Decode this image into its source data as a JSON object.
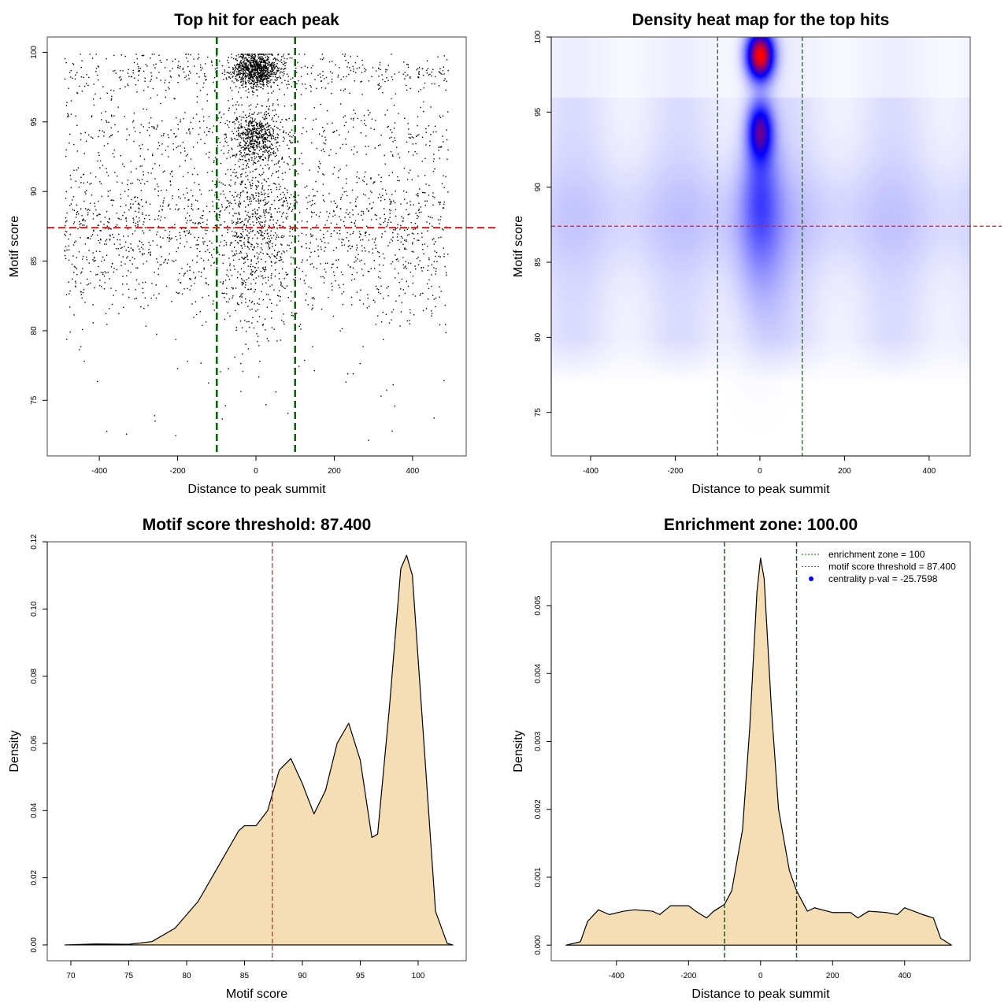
{
  "chart_data": [
    {
      "type": "scatter",
      "title": "Top hit for each peak",
      "xlabel": "Distance to peak summit",
      "ylabel": "Motif score",
      "xlim": [
        -533,
        537
      ],
      "ylim": [
        71.0,
        101.1
      ],
      "xticks": [
        -400,
        -200,
        0,
        200,
        400
      ],
      "yticks": [
        75,
        80,
        85,
        90,
        95,
        100
      ],
      "vlines": [
        -100,
        100
      ],
      "vline_color": "#006400",
      "hline": 87.4,
      "hline_color": "#e31a1c",
      "clusters": [
        {
          "x": 0,
          "y": 98.8,
          "note": "dense"
        },
        {
          "x": 0,
          "y": 94,
          "note": "dense"
        }
      ]
    },
    {
      "type": "heatmap",
      "title": "Density heat map for the top hits",
      "xlabel": "Distance to peak summit",
      "ylabel": "Motif score",
      "xlim": [
        -493,
        497
      ],
      "ylim": [
        72.1,
        100
      ],
      "xticks": [
        -400,
        -200,
        0,
        200,
        400
      ],
      "yticks": [
        75,
        80,
        85,
        90,
        95,
        100
      ],
      "vlines": [
        -100,
        100
      ],
      "hline": 87.4,
      "colors": [
        "#ffffff",
        "#0000ff",
        "#ff0000"
      ],
      "hotspots": [
        {
          "x": 0,
          "y": 98.8
        },
        {
          "x": 0,
          "y": 94
        }
      ]
    },
    {
      "type": "area",
      "title": "Motif score threshold: 87.400",
      "xlabel": "Motif score",
      "ylabel": "Density",
      "xlim": [
        67.96,
        104.15
      ],
      "ylim": [
        -0.0047,
        0.12
      ],
      "fill": "#f5deb3",
      "xticks": [
        70,
        75,
        80,
        85,
        90,
        95,
        100
      ],
      "yticks": [
        0.0,
        0.02,
        0.04,
        0.06,
        0.08,
        0.1,
        0.12
      ],
      "ytick_labels": [
        "0.00",
        "0.02",
        "0.04",
        "0.06",
        "0.08",
        "0.10",
        "0.12"
      ],
      "vline": 87.4,
      "x": [
        69.5,
        72,
        75,
        77,
        79,
        81,
        83,
        84.5,
        85,
        86,
        87,
        88,
        89,
        90,
        91,
        92,
        93,
        94,
        95,
        96,
        96.5,
        97.5,
        98.5,
        99,
        99.5,
        100.5,
        101.5,
        102.5,
        103
      ],
      "y": [
        0,
        0.0003,
        0.0002,
        0.001,
        0.005,
        0.013,
        0.025,
        0.034,
        0.0355,
        0.0355,
        0.04,
        0.052,
        0.0555,
        0.048,
        0.039,
        0.046,
        0.06,
        0.066,
        0.055,
        0.032,
        0.033,
        0.07,
        0.112,
        0.116,
        0.11,
        0.06,
        0.01,
        0.0005,
        0
      ]
    },
    {
      "type": "area",
      "title": "Enrichment zone: 100.00",
      "xlabel": "Distance to peak summit",
      "ylabel": "Density",
      "xlim": [
        -581,
        582
      ],
      "ylim": [
        -0.00023,
        0.00594
      ],
      "fill": "#f5deb3",
      "xticks": [
        -400,
        -200,
        0,
        200,
        400
      ],
      "yticks": [
        0,
        0.001,
        0.002,
        0.003,
        0.004,
        0.005
      ],
      "ytick_labels": [
        "0.000",
        "0.001",
        "0.002",
        "0.003",
        "0.004",
        "0.005"
      ],
      "vlines": [
        -100,
        100
      ],
      "legend": {
        "position": "top-right",
        "entries": [
          "enrichment zone = 100",
          "motif score threshold = 87.400",
          "centrality p-val = -25.7598"
        ],
        "colors": [
          "#006400",
          "#e31a1c",
          "#0000ff"
        ]
      },
      "x": [
        -540,
        -500,
        -480,
        -450,
        -420,
        -380,
        -350,
        -300,
        -280,
        -250,
        -200,
        -180,
        -150,
        -130,
        -100,
        -80,
        -50,
        -30,
        -10,
        0,
        10,
        30,
        50,
        80,
        100,
        130,
        150,
        200,
        250,
        270,
        300,
        350,
        380,
        400,
        450,
        480,
        500,
        530
      ],
      "y": [
        0,
        5e-05,
        0.00035,
        0.00052,
        0.00045,
        0.0005,
        0.00052,
        0.0005,
        0.00045,
        0.00058,
        0.00058,
        0.0005,
        0.0004,
        0.0005,
        0.0006,
        0.0008,
        0.0017,
        0.0032,
        0.0052,
        0.0057,
        0.0054,
        0.0035,
        0.002,
        0.0011,
        0.0008,
        0.0005,
        0.00055,
        0.00048,
        0.00048,
        0.0004,
        0.0005,
        0.00048,
        0.00045,
        0.00055,
        0.00045,
        0.0004,
        0.0001,
        0
      ]
    }
  ]
}
